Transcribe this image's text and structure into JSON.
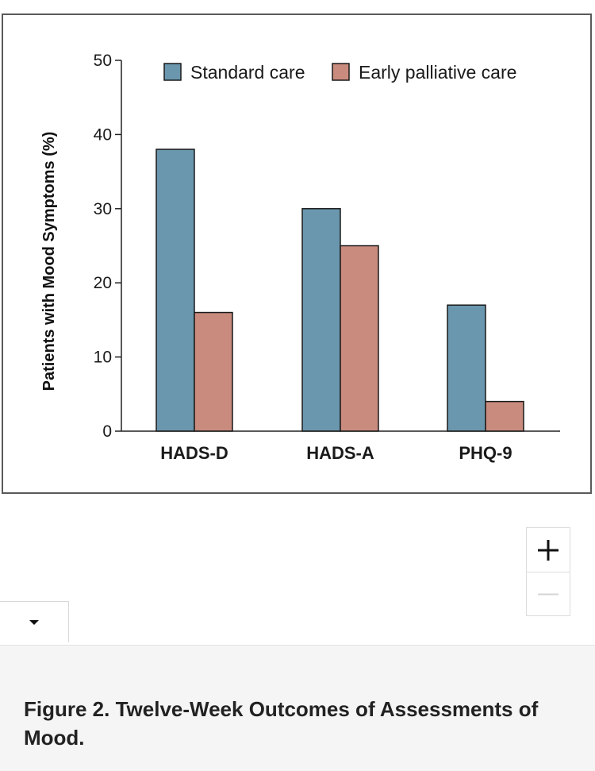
{
  "figure": {
    "caption": "Figure 2. Twelve-Week Outcomes of Assessments of Mood."
  },
  "controls": {
    "zoom_in_label": "+",
    "zoom_out_label": "—",
    "zoom_out_disabled": true,
    "expand_icon": "caret-down-icon"
  },
  "colors": {
    "standard_care": "#6a97ae",
    "early_palliative_care": "#c98b7e",
    "frame": "#5a5a5a",
    "caption_bg": "#f5f5f5"
  },
  "chart_data": {
    "type": "bar",
    "categories": [
      "HADS-D",
      "HADS-A",
      "PHQ-9"
    ],
    "series": [
      {
        "name": "Standard care",
        "values": [
          38,
          30,
          17
        ],
        "color": "#6a97ae"
      },
      {
        "name": "Early palliative care",
        "values": [
          16,
          25,
          4
        ],
        "color": "#c98b7e"
      }
    ],
    "title": "",
    "xlabel": "",
    "ylabel": "Patients with Mood Symptoms (%)",
    "ylim": [
      0,
      50
    ],
    "yticks": [
      0,
      10,
      20,
      30,
      40,
      50
    ],
    "legend_position": "top",
    "grid": false
  }
}
